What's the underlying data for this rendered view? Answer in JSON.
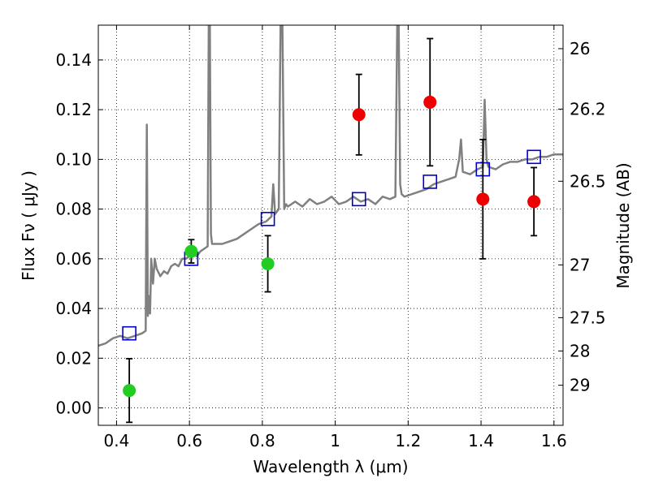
{
  "chart_data": {
    "type": "scatter",
    "xlabel": "Wavelength  λ (μm)",
    "ylabel": "Flux  Fν ( μJy )",
    "y2label": "Magnitude (AB)",
    "xlim": [
      0.35,
      1.625
    ],
    "ylim": [
      -0.007,
      0.154
    ],
    "grid": true,
    "x_ticks": [
      {
        "value": 0.4,
        "label": "0.4"
      },
      {
        "value": 0.6,
        "label": "0.6"
      },
      {
        "value": 0.8,
        "label": "0.8"
      },
      {
        "value": 1.0,
        "label": "1"
      },
      {
        "value": 1.2,
        "label": "1.2"
      },
      {
        "value": 1.4,
        "label": "1.4"
      },
      {
        "value": 1.6,
        "label": "1.6"
      }
    ],
    "y_ticks": [
      {
        "value": 0.0,
        "label": "0.00"
      },
      {
        "value": 0.02,
        "label": "0.02"
      },
      {
        "value": 0.04,
        "label": "0.04"
      },
      {
        "value": 0.06,
        "label": "0.06"
      },
      {
        "value": 0.08,
        "label": "0.08"
      },
      {
        "value": 0.1,
        "label": "0.10"
      },
      {
        "value": 0.12,
        "label": "0.12"
      },
      {
        "value": 0.14,
        "label": "0.14"
      }
    ],
    "magnitude_ticks": [
      {
        "mag": 26,
        "label": "26"
      },
      {
        "mag": 26.2,
        "label": "26.2"
      },
      {
        "mag": 26.5,
        "label": "26.5"
      },
      {
        "mag": 27,
        "label": "27"
      },
      {
        "mag": 27.5,
        "label": "27.5"
      },
      {
        "mag": 28,
        "label": "28"
      },
      {
        "mag": 29,
        "label": "29"
      }
    ],
    "series": [
      {
        "role": "model-spectrum",
        "kind": "line",
        "color": "#808080",
        "x": [
          0.35,
          0.37,
          0.39,
          0.41,
          0.43,
          0.45,
          0.47,
          0.48,
          0.483,
          0.486,
          0.489,
          0.492,
          0.495,
          0.5,
          0.505,
          0.51,
          0.52,
          0.53,
          0.54,
          0.55,
          0.56,
          0.57,
          0.58,
          0.59,
          0.6,
          0.61,
          0.62,
          0.63,
          0.64,
          0.65,
          0.653,
          0.656,
          0.659,
          0.662,
          0.67,
          0.69,
          0.71,
          0.73,
          0.75,
          0.77,
          0.79,
          0.81,
          0.825,
          0.83,
          0.835,
          0.845,
          0.85,
          0.855,
          0.86,
          0.865,
          0.87,
          0.89,
          0.91,
          0.93,
          0.95,
          0.97,
          0.99,
          1.01,
          1.03,
          1.05,
          1.07,
          1.09,
          1.11,
          1.13,
          1.15,
          1.165,
          1.17,
          1.174,
          1.178,
          1.182,
          1.19,
          1.21,
          1.23,
          1.25,
          1.27,
          1.29,
          1.31,
          1.33,
          1.34,
          1.345,
          1.35,
          1.37,
          1.39,
          1.405,
          1.41,
          1.415,
          1.42,
          1.44,
          1.46,
          1.48,
          1.5,
          1.52,
          1.54,
          1.56,
          1.58,
          1.6,
          1.625
        ],
        "y": [
          0.025,
          0.026,
          0.028,
          0.029,
          0.028,
          0.029,
          0.03,
          0.031,
          0.114,
          0.037,
          0.045,
          0.038,
          0.06,
          0.05,
          0.06,
          0.056,
          0.053,
          0.055,
          0.054,
          0.057,
          0.058,
          0.057,
          0.06,
          0.06,
          0.061,
          0.062,
          0.061,
          0.063,
          0.064,
          0.065,
          0.154,
          0.154,
          0.07,
          0.066,
          0.066,
          0.066,
          0.067,
          0.068,
          0.07,
          0.072,
          0.074,
          0.075,
          0.077,
          0.09,
          0.078,
          0.08,
          0.154,
          0.154,
          0.08,
          0.082,
          0.081,
          0.083,
          0.081,
          0.084,
          0.082,
          0.083,
          0.085,
          0.082,
          0.083,
          0.085,
          0.083,
          0.084,
          0.082,
          0.085,
          0.084,
          0.085,
          0.154,
          0.154,
          0.09,
          0.086,
          0.085,
          0.086,
          0.087,
          0.088,
          0.09,
          0.091,
          0.092,
          0.093,
          0.1,
          0.108,
          0.095,
          0.094,
          0.096,
          0.097,
          0.124,
          0.1,
          0.097,
          0.096,
          0.098,
          0.099,
          0.099,
          0.1,
          0.1,
          0.101,
          0.101,
          0.102,
          0.102
        ]
      },
      {
        "role": "model-photometry",
        "kind": "square",
        "color": "#0000cc",
        "x": [
          0.435,
          0.605,
          0.815,
          1.065,
          1.26,
          1.405,
          1.545
        ],
        "y": [
          0.03,
          0.06,
          0.076,
          0.084,
          0.091,
          0.096,
          0.101
        ]
      },
      {
        "role": "observed-optical",
        "kind": "errorbar",
        "color": "#22cc22",
        "x": [
          0.435,
          0.605,
          0.815
        ],
        "y": [
          0.007,
          0.063,
          0.058
        ],
        "yerr": [
          0.0128,
          0.0047,
          0.0113
        ]
      },
      {
        "role": "observed-nir",
        "kind": "errorbar",
        "color": "#ee0000",
        "x": [
          1.065,
          1.26,
          1.405,
          1.545
        ],
        "y": [
          0.118,
          0.123,
          0.084,
          0.083
        ],
        "yerr": [
          0.0162,
          0.0256,
          0.024,
          0.0137
        ]
      }
    ]
  }
}
